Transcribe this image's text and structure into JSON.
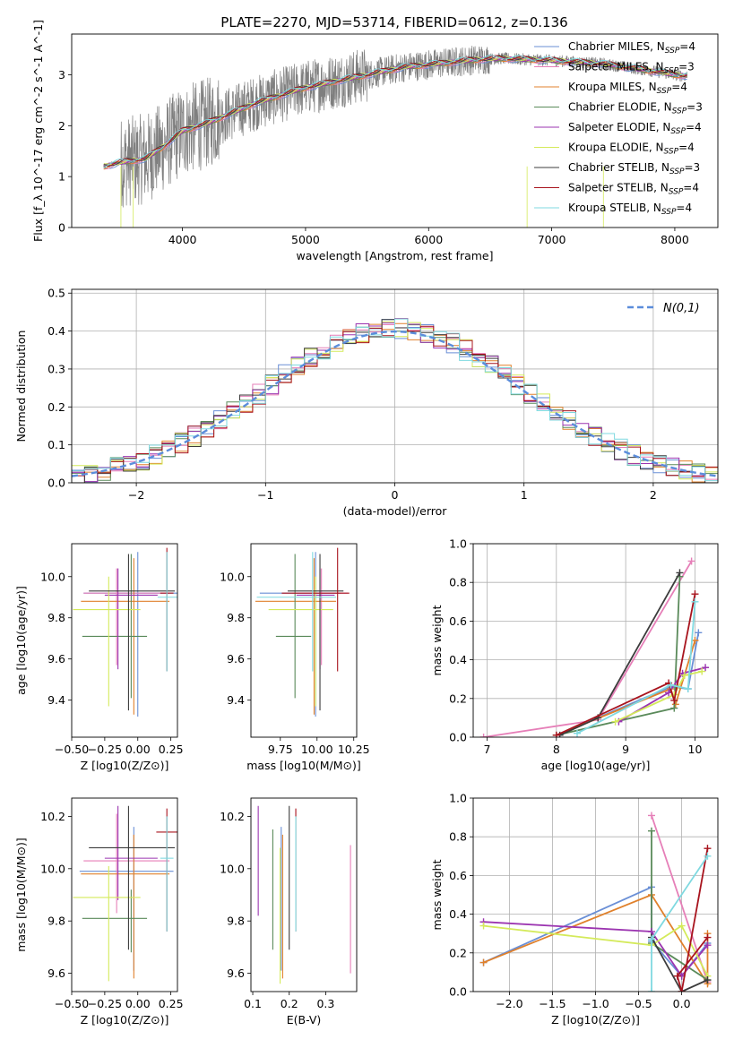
{
  "title": "PLATE=2270, MJD=53714, FIBERID=0612, z=0.136",
  "colors": {
    "series": [
      "#6a8fd6",
      "#e67fb8",
      "#e0812c",
      "#5a8a5a",
      "#9b34b0",
      "#d4ea5a",
      "#3c3c3c",
      "#a8141e",
      "#7fd9e0"
    ],
    "gaussian": "#5b8ddb",
    "grid": "#b0b0b0",
    "spectrum_gray": "#7f7f7f"
  },
  "legend_series": [
    {
      "name": "Chabrier MILES",
      "nssp": "4"
    },
    {
      "name": "Salpeter MILES",
      "nssp": "3"
    },
    {
      "name": "Kroupa MILES",
      "nssp": "4"
    },
    {
      "name": "Chabrier ELODIE",
      "nssp": "3"
    },
    {
      "name": "Salpeter ELODIE",
      "nssp": "4"
    },
    {
      "name": "Kroupa ELODIE",
      "nssp": "4"
    },
    {
      "name": "Chabrier STELIB",
      "nssp": "3"
    },
    {
      "name": "Salpeter STELIB",
      "nssp": "4"
    },
    {
      "name": "Kroupa STELIB",
      "nssp": "4"
    }
  ],
  "legend_sub": "SSP",
  "legend_prefix": "N",
  "chart_data": [
    {
      "type": "line",
      "id": "spectrum",
      "xlabel": "wavelength [Angstrom, rest frame]",
      "ylabel": "Flux [f",
      "ylabel_full": "Flux [f_λ 10^-17 erg cm^-2 s^-1 A^-1]",
      "xlim": [
        3100,
        8350
      ],
      "ylim": [
        0,
        3.8
      ],
      "xticks": [
        4000,
        5000,
        6000,
        7000,
        8000
      ],
      "yticks": [
        0,
        1,
        2,
        3
      ],
      "continuum": [
        [
          3360,
          1.2
        ],
        [
          3500,
          1.28
        ],
        [
          3700,
          1.35
        ],
        [
          3850,
          1.6
        ],
        [
          4000,
          1.9
        ],
        [
          4200,
          2.05
        ],
        [
          4400,
          2.25
        ],
        [
          4600,
          2.45
        ],
        [
          4800,
          2.6
        ],
        [
          5000,
          2.75
        ],
        [
          5200,
          2.85
        ],
        [
          5400,
          2.95
        ],
        [
          5600,
          3.05
        ],
        [
          5800,
          3.15
        ],
        [
          6000,
          3.2
        ],
        [
          6200,
          3.25
        ],
        [
          6400,
          3.3
        ],
        [
          6600,
          3.32
        ],
        [
          6800,
          3.3
        ],
        [
          7000,
          3.28
        ],
        [
          7200,
          3.25
        ],
        [
          7400,
          3.22
        ],
        [
          7600,
          3.15
        ],
        [
          7800,
          3.08
        ],
        [
          8000,
          3.0
        ],
        [
          8100,
          2.98
        ]
      ]
    },
    {
      "type": "bar",
      "id": "residuals",
      "xlabel": "(data-model)/error",
      "ylabel": "Normed distribution",
      "xlim": [
        -2.5,
        2.5
      ],
      "ylim": [
        0,
        0.51
      ],
      "xticks": [
        -2,
        -1,
        0,
        1,
        2
      ],
      "yticks": [
        0.0,
        0.1,
        0.2,
        0.3,
        0.4,
        0.5
      ],
      "bin_width": 0.1,
      "bin_start": -2.5,
      "legend_label": "N(0,1)",
      "grid": true
    },
    {
      "type": "scatter",
      "id": "age-vs-z",
      "xlabel": "Z [log10(Z/Z⊙)]",
      "ylabel": "age [log10(age/yr)]",
      "xlim": [
        -0.5,
        0.3
      ],
      "ylim": [
        9.22,
        10.16
      ],
      "xticks": [
        -0.5,
        -0.25,
        0.0,
        0.25
      ],
      "yticks": [
        9.4,
        9.6,
        9.8,
        10.0
      ],
      "points": [
        {
          "x": 0.0,
          "y": 9.92,
          "xerr": [
            0.41,
            0.3
          ],
          "yerr": [
            0.6,
            0.2
          ]
        },
        {
          "x": -0.16,
          "y": 9.92,
          "xerr": [
            0.25,
            0.4
          ],
          "yerr": [
            0.35,
            0.12
          ]
        },
        {
          "x": -0.03,
          "y": 9.88,
          "xerr": [
            0.4,
            0.27
          ],
          "yerr": [
            0.55,
            0.21
          ]
        },
        {
          "x": -0.05,
          "y": 9.71,
          "xerr": [
            0.37,
            0.12
          ],
          "yerr": [
            0.3,
            0.4
          ]
        },
        {
          "x": -0.15,
          "y": 9.91,
          "xerr": [
            0.1,
            0.3
          ],
          "yerr": [
            0.36,
            0.13
          ]
        },
        {
          "x": -0.22,
          "y": 9.84,
          "xerr": [
            0.27,
            0.24
          ],
          "yerr": [
            0.47,
            0.16
          ]
        },
        {
          "x": -0.07,
          "y": 9.93,
          "xerr": [
            0.3,
            0.35
          ],
          "yerr": [
            0.58,
            0.18
          ]
        },
        {
          "x": 0.22,
          "y": 9.92,
          "xerr": [
            0.05,
            0.05
          ],
          "yerr": [
            0.38,
            0.22
          ]
        },
        {
          "x": 0.22,
          "y": 9.9,
          "xerr": [
            0.07,
            0.08
          ],
          "yerr": [
            0.36,
            0.22
          ]
        }
      ]
    },
    {
      "type": "scatter",
      "id": "age-vs-mass",
      "xlabel": "mass [log10(M/M⊙)]",
      "ylabel": "",
      "xlim": [
        9.55,
        10.27
      ],
      "ylim": [
        9.22,
        10.16
      ],
      "xticks": [
        9.75,
        10.0,
        10.25
      ],
      "yticks": [
        9.4,
        9.6,
        9.8,
        10.0
      ],
      "points": [
        {
          "x": 9.99,
          "y": 9.92,
          "xerr": [
            0.38,
            0.17
          ],
          "yerr": [
            0.6,
            0.2
          ]
        },
        {
          "x": 10.03,
          "y": 9.92,
          "xerr": [
            0.2,
            0.18
          ],
          "yerr": [
            0.35,
            0.12
          ]
        },
        {
          "x": 9.98,
          "y": 9.88,
          "xerr": [
            0.4,
            0.15
          ],
          "yerr": [
            0.55,
            0.21
          ]
        },
        {
          "x": 9.85,
          "y": 9.71,
          "xerr": [
            0.13,
            0.11
          ],
          "yerr": [
            0.3,
            0.4
          ]
        },
        {
          "x": 10.02,
          "y": 9.91,
          "xerr": [
            0.16,
            0.1
          ],
          "yerr": [
            0.36,
            0.13
          ]
        },
        {
          "x": 9.99,
          "y": 9.84,
          "xerr": [
            0.32,
            0.12
          ],
          "yerr": [
            0.47,
            0.16
          ]
        },
        {
          "x": 10.02,
          "y": 9.93,
          "xerr": [
            0.22,
            0.16
          ],
          "yerr": [
            0.58,
            0.18
          ]
        },
        {
          "x": 10.14,
          "y": 9.92,
          "xerr": [
            0.38,
            0.08
          ],
          "yerr": [
            0.38,
            0.22
          ]
        },
        {
          "x": 9.97,
          "y": 9.9,
          "xerr": [
            0.38,
            0.16
          ],
          "yerr": [
            0.36,
            0.22
          ]
        }
      ]
    },
    {
      "type": "line",
      "id": "weight-vs-age",
      "xlabel": "age  [log10(age/yr)]",
      "ylabel": "mass weight",
      "xlim": [
        6.8,
        10.33
      ],
      "ylim": [
        0,
        1.0
      ],
      "xticks": [
        7,
        8,
        9,
        10
      ],
      "yticks": [
        0.0,
        0.2,
        0.4,
        0.6,
        0.8,
        1.0
      ],
      "grid": true,
      "series": [
        {
          "points": [
            [
              8.0,
              0.01
            ],
            [
              9.65,
              0.26
            ],
            [
              9.9,
              0.25
            ],
            [
              10.05,
              0.54
            ]
          ]
        },
        {
          "points": [
            [
              6.95,
              0.0
            ],
            [
              8.6,
              0.09
            ],
            [
              9.95,
              0.91
            ]
          ]
        },
        {
          "points": [
            [
              8.0,
              0.01
            ],
            [
              9.65,
              0.25
            ],
            [
              9.72,
              0.17
            ],
            [
              10.0,
              0.5
            ]
          ]
        },
        {
          "points": [
            [
              8.0,
              0.01
            ],
            [
              9.7,
              0.15
            ],
            [
              9.78,
              0.83
            ]
          ]
        },
        {
          "points": [
            [
              8.9,
              0.08
            ],
            [
              9.62,
              0.23
            ],
            [
              9.82,
              0.33
            ],
            [
              10.15,
              0.36
            ]
          ]
        },
        {
          "points": [
            [
              8.85,
              0.08
            ],
            [
              9.7,
              0.22
            ],
            [
              9.85,
              0.32
            ],
            [
              10.1,
              0.34
            ]
          ]
        },
        {
          "points": [
            [
              8.05,
              0.01
            ],
            [
              8.6,
              0.1
            ],
            [
              9.78,
              0.85
            ]
          ]
        },
        {
          "points": [
            [
              8.0,
              0.01
            ],
            [
              9.62,
              0.28
            ],
            [
              9.7,
              0.19
            ],
            [
              10.0,
              0.74
            ]
          ]
        },
        {
          "points": [
            [
              8.3,
              0.02
            ],
            [
              9.65,
              0.27
            ],
            [
              9.9,
              0.25
            ],
            [
              10.0,
              0.7
            ]
          ]
        }
      ]
    },
    {
      "type": "scatter",
      "id": "mass-vs-z",
      "xlabel": "Z [log10(Z/Z⊙)]",
      "ylabel": "mass [log10(M/M⊙)]",
      "xlim": [
        -0.5,
        0.3
      ],
      "ylim": [
        9.53,
        10.27
      ],
      "xticks": [
        -0.5,
        -0.25,
        0.0,
        0.25
      ],
      "yticks": [
        9.6,
        9.8,
        10.0,
        10.2
      ],
      "points": [
        {
          "x": -0.03,
          "y": 9.99,
          "xerr": [
            0.41,
            0.3
          ],
          "yerr": [
            0.38,
            0.17
          ]
        },
        {
          "x": -0.16,
          "y": 10.03,
          "xerr": [
            0.25,
            0.4
          ],
          "yerr": [
            0.2,
            0.18
          ]
        },
        {
          "x": -0.03,
          "y": 9.98,
          "xerr": [
            0.4,
            0.27
          ],
          "yerr": [
            0.4,
            0.15
          ]
        },
        {
          "x": -0.05,
          "y": 9.81,
          "xerr": [
            0.37,
            0.12
          ],
          "yerr": [
            0.13,
            0.11
          ]
        },
        {
          "x": -0.15,
          "y": 10.04,
          "xerr": [
            0.1,
            0.3
          ],
          "yerr": [
            0.16,
            0.2
          ]
        },
        {
          "x": -0.22,
          "y": 9.89,
          "xerr": [
            0.27,
            0.24
          ],
          "yerr": [
            0.32,
            0.12
          ]
        },
        {
          "x": -0.07,
          "y": 10.08,
          "xerr": [
            0.3,
            0.35
          ],
          "yerr": [
            0.39,
            0.16
          ]
        },
        {
          "x": 0.22,
          "y": 10.14,
          "xerr": [
            0.08,
            0.1
          ],
          "yerr": [
            0.38,
            0.09
          ]
        },
        {
          "x": 0.22,
          "y": 10.04,
          "xerr": [
            0.05,
            0.05
          ],
          "yerr": [
            0.28,
            0.16
          ]
        }
      ]
    },
    {
      "type": "scatter",
      "id": "mass-vs-ebv",
      "xlabel": "E(B-V)",
      "ylabel": "",
      "xlim": [
        0.095,
        0.385
      ],
      "ylim": [
        9.53,
        10.27
      ],
      "xticks": [
        0.1,
        0.2,
        0.3
      ],
      "yticks": [
        9.6,
        9.8,
        10.0,
        10.2
      ],
      "points": [
        {
          "x": 0.178,
          "y": 9.99,
          "yerr": [
            0.38,
            0.17
          ]
        },
        {
          "x": 0.368,
          "y": 9.95,
          "yerr": [
            0.35,
            0.14
          ]
        },
        {
          "x": 0.182,
          "y": 9.98,
          "yerr": [
            0.4,
            0.15
          ]
        },
        {
          "x": 0.155,
          "y": 9.95,
          "yerr": [
            0.26,
            0.2
          ]
        },
        {
          "x": 0.115,
          "y": 10.04,
          "yerr": [
            0.22,
            0.2
          ]
        },
        {
          "x": 0.175,
          "y": 9.86,
          "yerr": [
            0.3,
            0.22
          ]
        },
        {
          "x": 0.2,
          "y": 10.08,
          "yerr": [
            0.39,
            0.16
          ]
        },
        {
          "x": 0.218,
          "y": 10.14,
          "yerr": [
            0.38,
            0.09
          ]
        },
        {
          "x": 0.218,
          "y": 10.04,
          "yerr": [
            0.28,
            0.16
          ]
        }
      ]
    },
    {
      "type": "line",
      "id": "weight-vs-z",
      "xlabel": "Z [log10(Z/Z⊙)]",
      "ylabel": "mass weight",
      "xlim": [
        -2.42,
        0.42
      ],
      "ylim": [
        0,
        1.0
      ],
      "xticks": [
        -2.0,
        -1.5,
        -1.0,
        -0.5,
        0.0
      ],
      "yticks": [
        0.0,
        0.2,
        0.4,
        0.6,
        0.8,
        1.0
      ],
      "grid": true,
      "series": [
        {
          "points": [
            [
              -2.3,
              0.15
            ],
            [
              -0.35,
              0.54
            ],
            [
              -0.35,
              0.26
            ],
            [
              0.0,
              0.08
            ],
            [
              0.3,
              0.25
            ]
          ]
        },
        {
          "points": [
            [
              -0.35,
              0.91
            ],
            [
              0.3,
              0.05
            ]
          ]
        },
        {
          "points": [
            [
              -2.3,
              0.15
            ],
            [
              -0.35,
              0.5
            ],
            [
              0.3,
              0.04
            ],
            [
              0.3,
              0.3
            ]
          ]
        },
        {
          "points": [
            [
              -0.35,
              0.83
            ],
            [
              -0.35,
              0.25
            ],
            [
              0.3,
              0.06
            ]
          ]
        },
        {
          "points": [
            [
              -2.3,
              0.36
            ],
            [
              -0.35,
              0.31
            ],
            [
              0.0,
              0.08
            ],
            [
              0.3,
              0.24
            ]
          ]
        },
        {
          "points": [
            [
              -2.3,
              0.34
            ],
            [
              -0.35,
              0.24
            ],
            [
              0.0,
              0.34
            ],
            [
              0.3,
              0.08
            ]
          ]
        },
        {
          "points": [
            [
              -0.35,
              0.28
            ],
            [
              0.0,
              0.0
            ],
            [
              0.3,
              0.06
            ]
          ]
        },
        {
          "points": [
            [
              0.3,
              0.74
            ],
            [
              0.0,
              0.0
            ],
            [
              -0.05,
              0.08
            ],
            [
              0.3,
              0.28
            ]
          ]
        },
        {
          "points": [
            [
              -0.35,
              0.0
            ],
            [
              -0.35,
              0.27
            ],
            [
              0.3,
              0.7
            ]
          ]
        }
      ]
    }
  ]
}
